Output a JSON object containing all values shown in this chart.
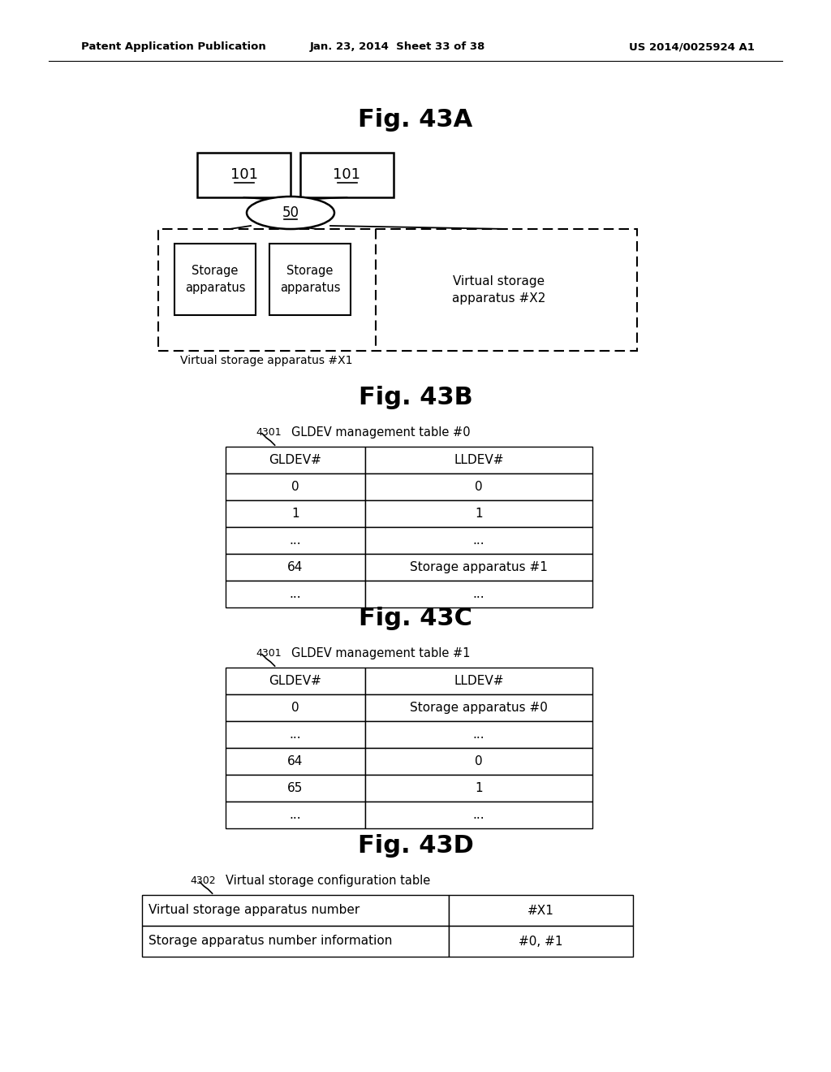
{
  "bg_color": "#ffffff",
  "header_text_left": "Patent Application Publication",
  "header_text_mid": "Jan. 23, 2014  Sheet 33 of 38",
  "header_text_right": "US 2014/0025924 A1",
  "fig43A_title": "Fig. 43A",
  "fig43B_title": "Fig. 43B",
  "fig43C_title": "Fig. 43C",
  "fig43D_title": "Fig. 43D",
  "tableB_label": "4301",
  "tableB_caption": "GLDEV management table #0",
  "tableB_headers": [
    "GLDEV#",
    "LLDEV#"
  ],
  "tableB_rows": [
    [
      "0",
      "0"
    ],
    [
      "1",
      "1"
    ],
    [
      "...",
      "..."
    ],
    [
      "64",
      "Storage apparatus #1"
    ],
    [
      "...",
      "..."
    ]
  ],
  "tableC_label": "4301",
  "tableC_caption": "GLDEV management table #1",
  "tableC_headers": [
    "GLDEV#",
    "LLDEV#"
  ],
  "tableC_rows": [
    [
      "0",
      "Storage apparatus #0"
    ],
    [
      "...",
      "..."
    ],
    [
      "64",
      "0"
    ],
    [
      "65",
      "1"
    ],
    [
      "...",
      "..."
    ]
  ],
  "tableD_label": "4302",
  "tableD_caption": "Virtual storage configuration table",
  "tableD_rows": [
    [
      "Virtual storage apparatus number",
      "#X1"
    ],
    [
      "Storage apparatus number information",
      "#0, #1"
    ]
  ]
}
